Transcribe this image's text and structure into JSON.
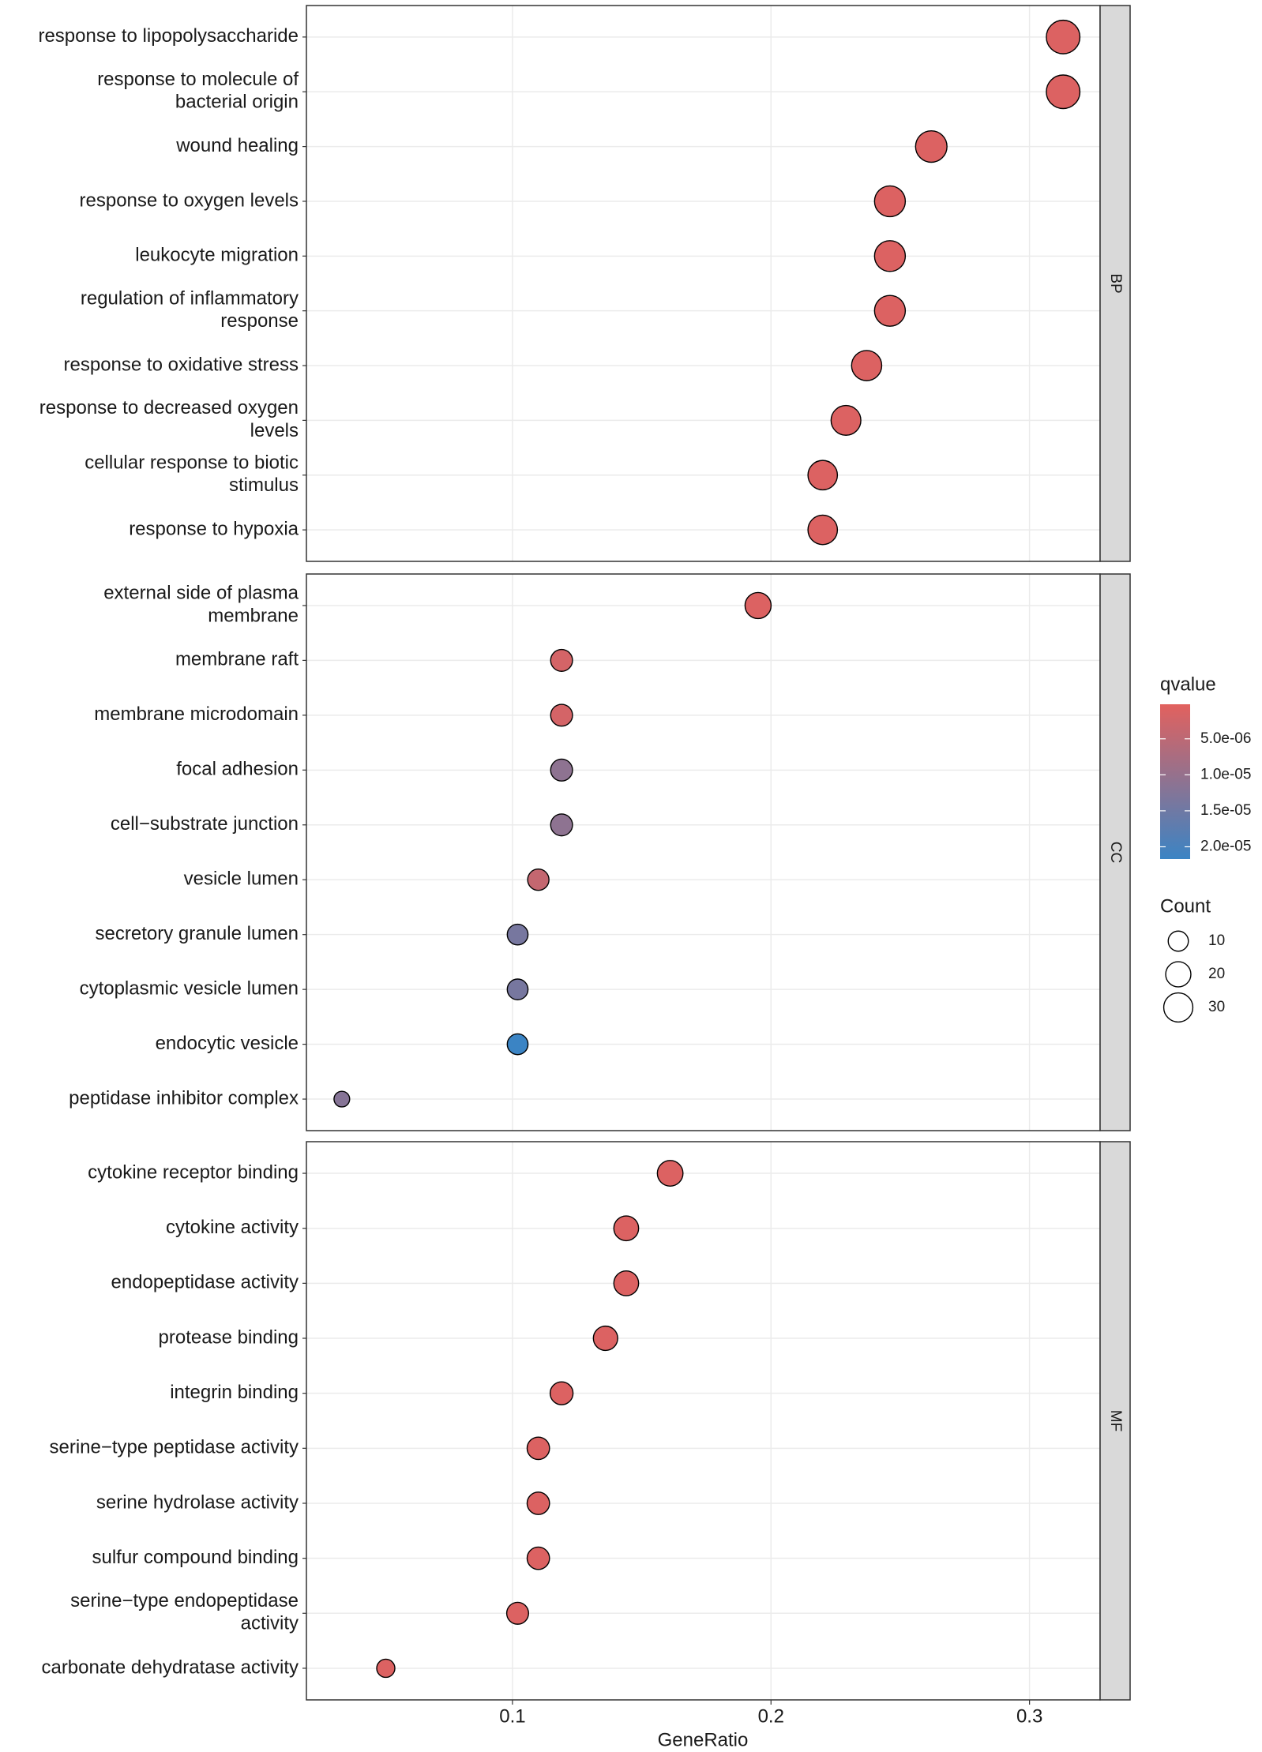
{
  "chart_data": {
    "type": "dot",
    "x_label": "GeneRatio",
    "xlim": [
      0.0203,
      0.3273
    ],
    "xticks": [
      0.1,
      0.2,
      0.3
    ],
    "grid": true,
    "color_legend_title": "qvalue",
    "color_low": "#E2615E",
    "color_high": "#3B84C4",
    "clim": [
      2e-07,
      2.17e-05
    ],
    "cticks": [
      {
        "value": 5e-06,
        "label": "5.0e-06"
      },
      {
        "value": 1e-05,
        "label": "1.0e-05"
      },
      {
        "value": 1.5e-05,
        "label": "1.5e-05"
      },
      {
        "value": 2e-05,
        "label": "2.0e-05"
      }
    ],
    "size_legend_title": "Count",
    "size_ticks": [
      10,
      20,
      30
    ],
    "panels": [
      {
        "name": "BP",
        "categories": [
          "response to lipopolysaccharide",
          "response to molecule of\nbacterial origin",
          "wound healing",
          "response to oxygen levels",
          "leukocyte migration",
          "regulation of inflammatory\nresponse",
          "response to oxidative stress",
          "response to decreased oxygen\nlevels",
          "cellular response to biotic\nstimulus",
          "response to hypoxia"
        ],
        "gene_ratio": [
          0.313,
          0.313,
          0.262,
          0.246,
          0.246,
          0.246,
          0.237,
          0.229,
          0.22,
          0.22
        ],
        "count": [
          44,
          44,
          37,
          35,
          35,
          35,
          33,
          32,
          31,
          31
        ],
        "qvalue": [
          1e-06,
          1e-06,
          1e-06,
          1e-06,
          1e-06,
          1e-06,
          1e-06,
          1e-06,
          1e-06,
          1e-06
        ]
      },
      {
        "name": "CC",
        "categories": [
          "external side of plasma\nmembrane",
          "membrane raft",
          "membrane microdomain",
          "focal adhesion",
          "cell−substrate junction",
          "vesicle lumen",
          "secretory granule lumen",
          "cytoplasmic vesicle lumen",
          "endocytic vesicle",
          "peptidase inhibitor complex"
        ],
        "gene_ratio": [
          0.195,
          0.119,
          0.119,
          0.119,
          0.119,
          0.11,
          0.102,
          0.102,
          0.102,
          0.034
        ],
        "count": [
          22,
          13,
          13,
          13,
          13,
          12,
          11,
          11,
          11,
          4
        ],
        "qvalue": [
          1e-06,
          2e-06,
          2e-06,
          1.1e-05,
          1.1e-05,
          4e-06,
          1.4e-05,
          1.4e-05,
          2.17e-05,
          1.2e-05
        ]
      },
      {
        "name": "MF",
        "categories": [
          "cytokine receptor binding",
          "cytokine activity",
          "endopeptidase activity",
          "protease binding",
          "integrin binding",
          "serine−type peptidase activity",
          "serine hydrolase activity",
          "sulfur compound binding",
          "serine−type endopeptidase\nactivity",
          "carbonate dehydratase activity"
        ],
        "gene_ratio": [
          0.161,
          0.144,
          0.144,
          0.136,
          0.119,
          0.11,
          0.11,
          0.11,
          0.102,
          0.051
        ],
        "count": [
          21,
          19,
          19,
          18,
          15,
          14,
          14,
          14,
          13,
          7
        ],
        "qvalue": [
          1e-06,
          1e-06,
          1e-06,
          1e-06,
          1e-06,
          1e-06,
          1e-06,
          1e-06,
          1e-06,
          1e-06
        ]
      }
    ]
  }
}
